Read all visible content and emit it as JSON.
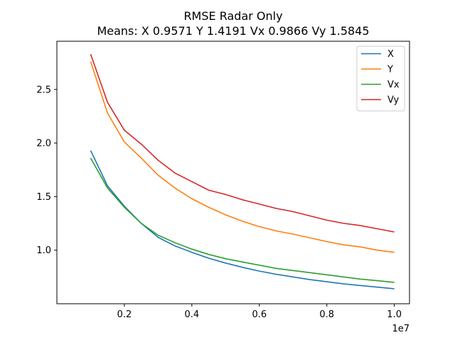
{
  "chart_data": {
    "type": "line",
    "title": "RMSE Radar Only",
    "subtitle": "Means: X 0.9571 Y 1.4191 Vx 0.9866 Vy 1.5845",
    "xlabel": "",
    "ylabel": "",
    "x_offset_label": "1e7",
    "xlim": [
      0.0,
      1.045
    ],
    "ylim": [
      0.5,
      2.95
    ],
    "x_ticks": [
      {
        "value": 0.2,
        "label": "0.2"
      },
      {
        "value": 0.4,
        "label": "0.4"
      },
      {
        "value": 0.6,
        "label": "0.6"
      },
      {
        "value": 0.8,
        "label": "0.8"
      },
      {
        "value": 1.0,
        "label": "1.0"
      }
    ],
    "y_ticks": [
      {
        "value": 1.0,
        "label": "1.0"
      },
      {
        "value": 1.5,
        "label": "1.5"
      },
      {
        "value": 2.0,
        "label": "2.0"
      },
      {
        "value": 2.5,
        "label": "2.5"
      }
    ],
    "grid": false,
    "legend_position": "top-right",
    "x": [
      0.1,
      0.15,
      0.2,
      0.25,
      0.3,
      0.35,
      0.4,
      0.45,
      0.5,
      0.55,
      0.6,
      0.65,
      0.7,
      0.75,
      0.8,
      0.85,
      0.9,
      0.95,
      1.0
    ],
    "series": [
      {
        "name": "X",
        "color": "#1f77b4",
        "values": [
          1.93,
          1.6,
          1.41,
          1.25,
          1.12,
          1.04,
          0.98,
          0.925,
          0.88,
          0.84,
          0.805,
          0.775,
          0.75,
          0.725,
          0.705,
          0.685,
          0.67,
          0.655,
          0.64
        ]
      },
      {
        "name": "Y",
        "color": "#ff7f0e",
        "values": [
          2.76,
          2.28,
          2.01,
          1.86,
          1.7,
          1.58,
          1.48,
          1.4,
          1.33,
          1.27,
          1.22,
          1.18,
          1.15,
          1.115,
          1.08,
          1.05,
          1.03,
          1.0,
          0.98
        ]
      },
      {
        "name": "Vx",
        "color": "#2ca02c",
        "values": [
          1.86,
          1.58,
          1.4,
          1.25,
          1.14,
          1.07,
          1.01,
          0.96,
          0.92,
          0.89,
          0.86,
          0.83,
          0.81,
          0.79,
          0.77,
          0.75,
          0.73,
          0.715,
          0.7
        ]
      },
      {
        "name": "Vy",
        "color": "#d62728",
        "values": [
          2.83,
          2.38,
          2.12,
          1.99,
          1.84,
          1.72,
          1.64,
          1.56,
          1.52,
          1.47,
          1.43,
          1.39,
          1.36,
          1.32,
          1.28,
          1.25,
          1.23,
          1.2,
          1.17
        ]
      }
    ]
  }
}
